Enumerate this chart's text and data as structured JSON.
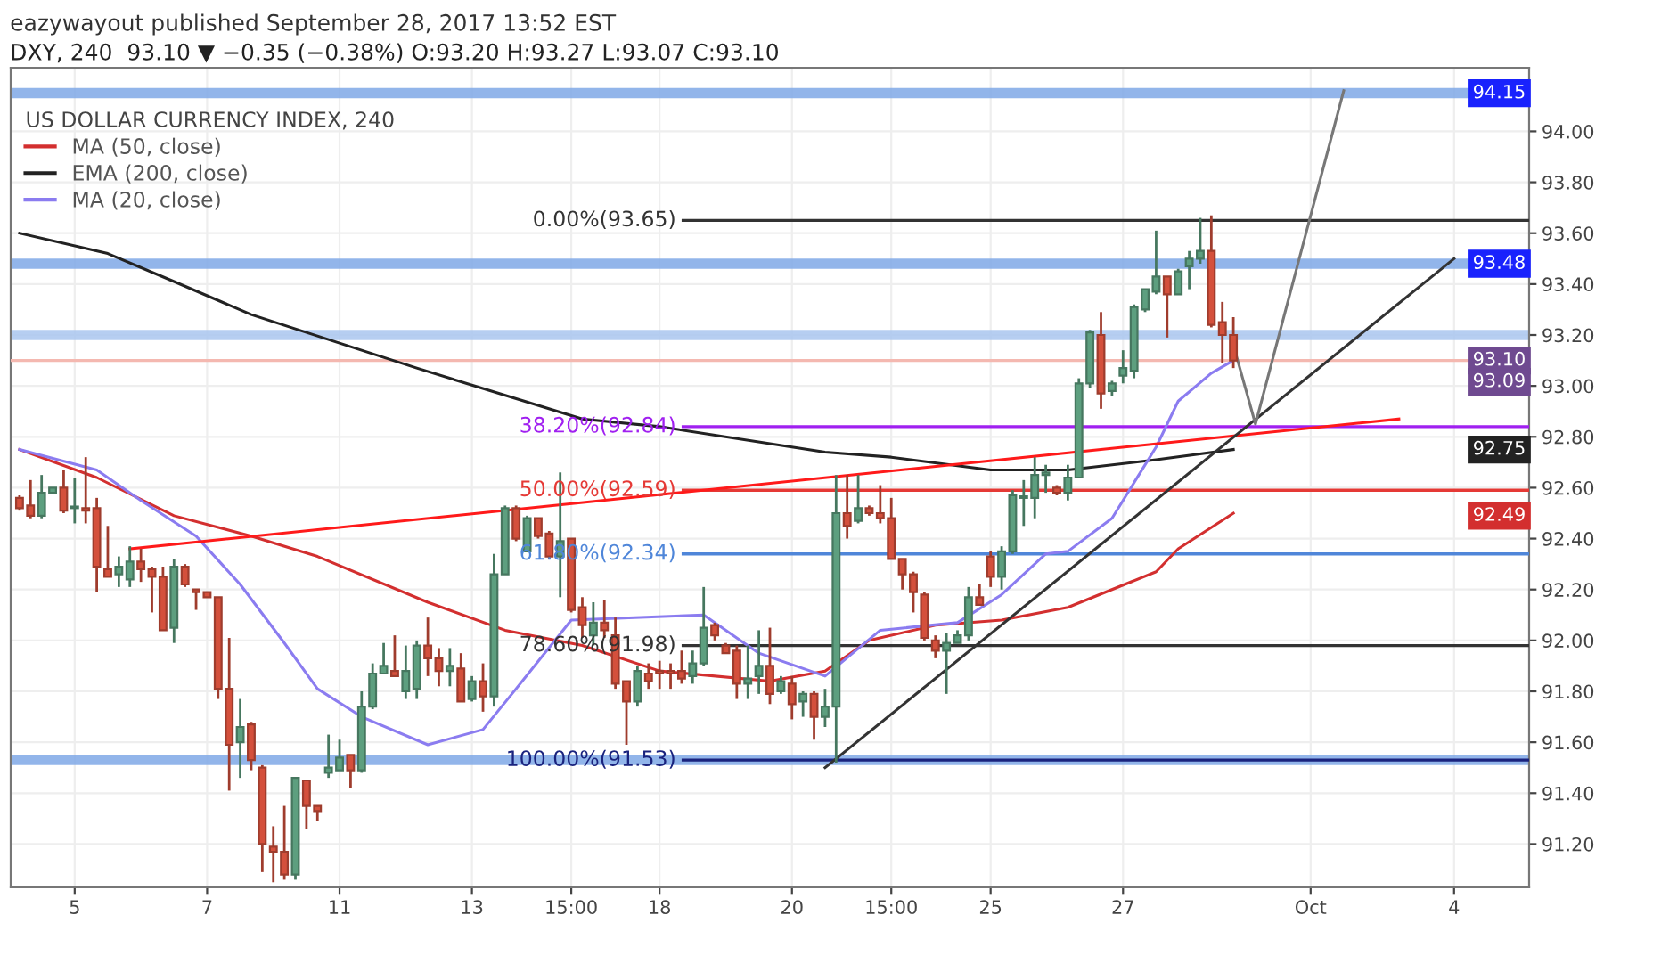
{
  "chart_data": {
    "type": "candlestick",
    "title": "eazywayout published September 28, 2017 13:52 EST",
    "subtitle": "DXY, 240  93.10 ▼ −0.35 (−0.38%) O:93.20 H:93.27 L:93.07 C:93.10",
    "legend_title": "US DOLLAR CURRENCY INDEX, 240",
    "categories": [
      null,
      null,
      null,
      null,
      null,
      "5",
      null,
      null,
      null,
      null,
      null,
      null,
      null,
      null,
      null,
      null,
      null,
      "7",
      null,
      null,
      null,
      null,
      null,
      null,
      null,
      null,
      null,
      null,
      null,
      "11",
      null,
      null,
      null,
      null,
      null,
      null,
      null,
      null,
      null,
      null,
      null,
      "13",
      null,
      null,
      null,
      null,
      null,
      null,
      null,
      null,
      "15:00",
      null,
      null,
      null,
      null,
      null,
      null,
      null,
      "18",
      null,
      null,
      null,
      null,
      null,
      null,
      null,
      null,
      null,
      null,
      null,
      "20",
      null,
      null,
      null,
      null,
      null,
      null,
      null,
      null,
      "15:00",
      null,
      null,
      null,
      null,
      null,
      null,
      null,
      null,
      "25",
      null,
      null,
      null,
      null,
      null,
      null,
      null,
      null,
      null,
      null,
      null,
      "27",
      null,
      null,
      null,
      null,
      null,
      null,
      null,
      null,
      null,
      null,
      null,
      null,
      null,
      null,
      null,
      null,
      "Oct",
      null,
      null,
      null,
      null,
      null,
      null,
      null,
      null,
      null,
      null,
      null,
      null,
      "4",
      null
    ],
    "ohlc": [
      [
        92.56,
        92.57,
        92.51,
        92.52
      ],
      [
        92.53,
        92.63,
        92.48,
        92.49
      ],
      [
        92.49,
        92.65,
        92.48,
        92.58
      ],
      [
        92.58,
        92.6,
        92.58,
        92.6
      ],
      [
        92.6,
        92.67,
        92.5,
        92.51
      ],
      [
        92.52,
        92.64,
        92.46,
        92.52
      ],
      [
        92.52,
        92.72,
        92.46,
        92.51
      ],
      [
        92.52,
        92.56,
        92.19,
        92.29
      ],
      [
        92.28,
        92.45,
        92.25,
        92.25
      ],
      [
        92.26,
        92.33,
        92.21,
        92.29
      ],
      [
        92.24,
        92.37,
        92.21,
        92.31
      ],
      [
        92.31,
        92.36,
        92.23,
        92.28
      ],
      [
        92.28,
        92.29,
        92.11,
        92.25
      ],
      [
        92.25,
        92.29,
        92.04,
        92.04
      ],
      [
        92.05,
        92.32,
        91.99,
        92.29
      ],
      [
        92.29,
        92.3,
        92.21,
        92.22
      ],
      [
        92.2,
        92.2,
        92.12,
        92.19
      ],
      [
        92.19,
        92.19,
        92.17,
        92.17
      ],
      [
        92.17,
        92.17,
        91.77,
        91.81
      ],
      [
        91.81,
        92.01,
        91.41,
        91.59
      ],
      [
        91.6,
        91.77,
        91.46,
        91.66
      ],
      [
        91.67,
        91.68,
        91.49,
        91.53
      ],
      [
        91.5,
        91.51,
        91.09,
        91.2
      ],
      [
        91.19,
        91.27,
        91.05,
        91.17
      ],
      [
        91.17,
        91.35,
        91.06,
        91.08
      ],
      [
        91.08,
        91.46,
        91.06,
        91.46
      ],
      [
        91.45,
        91.45,
        91.26,
        91.35
      ],
      [
        91.35,
        91.35,
        91.29,
        91.33
      ],
      [
        91.48,
        91.63,
        91.46,
        91.5
      ],
      [
        91.49,
        91.61,
        91.49,
        91.54
      ],
      [
        91.55,
        91.55,
        91.42,
        91.49
      ],
      [
        91.49,
        91.8,
        91.48,
        91.74
      ],
      [
        91.74,
        91.91,
        91.73,
        91.87
      ],
      [
        91.87,
        91.99,
        91.87,
        91.9
      ],
      [
        91.88,
        92.02,
        91.86,
        91.86
      ],
      [
        91.8,
        91.98,
        91.77,
        91.88
      ],
      [
        91.81,
        92.0,
        91.77,
        91.98
      ],
      [
        91.98,
        92.09,
        91.86,
        91.93
      ],
      [
        91.93,
        91.97,
        91.82,
        91.88
      ],
      [
        91.88,
        91.97,
        91.82,
        91.9
      ],
      [
        91.89,
        91.95,
        91.76,
        91.76
      ],
      [
        91.77,
        91.86,
        91.76,
        91.84
      ],
      [
        91.84,
        91.91,
        91.72,
        91.78
      ],
      [
        91.78,
        92.34,
        91.74,
        92.26
      ],
      [
        92.26,
        92.53,
        92.26,
        92.52
      ],
      [
        92.52,
        92.53,
        92.39,
        92.4
      ],
      [
        92.35,
        92.49,
        92.35,
        92.48
      ],
      [
        92.48,
        92.48,
        92.4,
        92.41
      ],
      [
        92.42,
        92.43,
        92.32,
        92.33
      ],
      [
        92.33,
        92.66,
        92.17,
        92.39
      ],
      [
        92.4,
        92.4,
        92.11,
        92.12
      ],
      [
        92.13,
        92.17,
        92.01,
        92.06
      ],
      [
        92.02,
        92.15,
        91.98,
        92.07
      ],
      [
        92.07,
        92.16,
        92.01,
        92.04
      ],
      [
        92.02,
        92.09,
        91.81,
        91.83
      ],
      [
        91.84,
        91.84,
        91.59,
        91.76
      ],
      [
        91.76,
        91.9,
        91.74,
        91.88
      ],
      [
        91.87,
        91.91,
        91.81,
        91.84
      ],
      [
        91.88,
        91.92,
        91.81,
        91.87
      ],
      [
        91.88,
        91.91,
        91.81,
        91.87
      ],
      [
        91.88,
        91.96,
        91.83,
        91.85
      ],
      [
        91.86,
        91.96,
        91.83,
        91.91
      ],
      [
        91.91,
        92.21,
        91.9,
        92.05
      ],
      [
        92.06,
        92.07,
        92.0,
        92.02
      ],
      [
        91.98,
        91.99,
        91.95,
        91.95
      ],
      [
        91.96,
        91.98,
        91.77,
        91.83
      ],
      [
        91.83,
        91.98,
        91.77,
        91.85
      ],
      [
        91.86,
        92.04,
        91.79,
        91.9
      ],
      [
        91.9,
        92.05,
        91.75,
        91.79
      ],
      [
        91.8,
        91.86,
        91.79,
        91.84
      ],
      [
        91.83,
        91.86,
        91.69,
        91.75
      ],
      [
        91.76,
        91.8,
        91.7,
        91.79
      ],
      [
        91.79,
        91.8,
        91.61,
        91.7
      ],
      [
        91.7,
        91.81,
        91.66,
        91.74
      ],
      [
        91.74,
        92.65,
        91.52,
        92.5
      ],
      [
        92.5,
        92.65,
        92.4,
        92.45
      ],
      [
        92.47,
        92.65,
        92.46,
        92.52
      ],
      [
        92.52,
        92.53,
        92.49,
        92.5
      ],
      [
        92.5,
        92.61,
        92.46,
        92.48
      ],
      [
        92.48,
        92.56,
        92.32,
        92.32
      ],
      [
        92.32,
        92.32,
        92.2,
        92.26
      ],
      [
        92.26,
        92.27,
        92.11,
        92.19
      ],
      [
        92.18,
        92.19,
        92.0,
        92.01
      ],
      [
        92.0,
        92.02,
        91.93,
        91.96
      ],
      [
        91.96,
        92.03,
        91.79,
        91.99
      ],
      [
        91.99,
        92.04,
        91.99,
        92.02
      ],
      [
        92.02,
        92.21,
        92.0,
        92.17
      ],
      [
        92.17,
        92.22,
        92.14,
        92.14
      ],
      [
        92.33,
        92.35,
        92.21,
        92.25
      ],
      [
        92.25,
        92.37,
        92.2,
        92.35
      ],
      [
        92.35,
        92.59,
        92.34,
        92.57
      ],
      [
        92.56,
        92.63,
        92.45,
        92.56
      ],
      [
        92.56,
        92.72,
        92.48,
        92.65
      ],
      [
        92.65,
        92.69,
        92.58,
        92.66
      ],
      [
        92.6,
        92.61,
        92.57,
        92.58
      ],
      [
        92.58,
        92.69,
        92.55,
        92.64
      ],
      [
        92.64,
        93.03,
        92.64,
        93.01
      ],
      [
        93.01,
        93.22,
        92.99,
        93.21
      ],
      [
        93.2,
        93.29,
        92.91,
        92.97
      ],
      [
        92.98,
        93.02,
        92.96,
        93.01
      ],
      [
        93.04,
        93.14,
        93.01,
        93.07
      ],
      [
        93.06,
        93.32,
        93.03,
        93.31
      ],
      [
        93.3,
        93.38,
        93.29,
        93.38
      ],
      [
        93.37,
        93.61,
        93.36,
        93.43
      ],
      [
        93.43,
        93.43,
        93.19,
        93.36
      ],
      [
        93.36,
        93.46,
        93.36,
        93.45
      ],
      [
        93.47,
        93.53,
        93.38,
        93.5
      ],
      [
        93.5,
        93.66,
        93.48,
        93.53
      ],
      [
        93.53,
        93.67,
        93.23,
        93.24
      ],
      [
        93.25,
        93.33,
        93.09,
        93.2
      ],
      [
        93.2,
        93.27,
        93.07,
        93.1
      ],
      null,
      null,
      null,
      null,
      null,
      null,
      null,
      null,
      null,
      null,
      null,
      null,
      null,
      null,
      null,
      null,
      null,
      null,
      null,
      null,
      null
    ],
    "colors": [
      "#d4503c",
      "#d4503c",
      "#5d9f7f",
      "#5d9f7f",
      "#d4503c",
      "#5d9f7f",
      "#d4503c",
      "#d4503c",
      "#d4503c",
      "#5d9f7f",
      "#5d9f7f",
      "#d4503c",
      "#d4503c",
      "#d4503c",
      "#5d9f7f",
      "#d4503c",
      "#d4503c",
      "#d4503c",
      "#d4503c",
      "#d4503c",
      "#5d9f7f",
      "#d4503c",
      "#d4503c",
      "#d4503c",
      "#d4503c",
      "#5d9f7f",
      "#d4503c",
      "#d4503c",
      "#5d9f7f",
      "#5d9f7f",
      "#d4503c",
      "#5d9f7f",
      "#5d9f7f",
      "#5d9f7f",
      "#d4503c",
      "#5d9f7f",
      "#5d9f7f",
      "#d4503c",
      "#d4503c",
      "#5d9f7f",
      "#d4503c",
      "#5d9f7f",
      "#d4503c",
      "#5d9f7f",
      "#5d9f7f",
      "#d4503c",
      "#5d9f7f",
      "#d4503c",
      "#d4503c",
      "#5d9f7f",
      "#d4503c",
      "#d4503c",
      "#5d9f7f",
      "#d4503c",
      "#d4503c",
      "#d4503c",
      "#5d9f7f",
      "#d4503c",
      "#d4503c",
      "#d4503c",
      "#d4503c",
      "#5d9f7f",
      "#5d9f7f",
      "#d4503c",
      "#d4503c",
      "#d4503c",
      "#5d9f7f",
      "#5d9f7f",
      "#d4503c",
      "#5d9f7f",
      "#d4503c",
      "#5d9f7f",
      "#d4503c",
      "#5d9f7f",
      "#5d9f7f",
      "#d4503c",
      "#5d9f7f",
      "#d4503c",
      "#d4503c",
      "#d4503c",
      "#d4503c",
      "#d4503c",
      "#d4503c",
      "#d4503c",
      "#5d9f7f",
      "#5d9f7f",
      "#5d9f7f",
      "#d4503c",
      "#d4503c",
      "#5d9f7f",
      "#5d9f7f",
      "#5d9f7f",
      "#5d9f7f",
      "#5d9f7f",
      "#d4503c",
      "#5d9f7f",
      "#5d9f7f",
      "#5d9f7f",
      "#d4503c",
      "#5d9f7f",
      "#5d9f7f",
      "#5d9f7f",
      "#5d9f7f",
      "#5d9f7f",
      "#d4503c",
      "#5d9f7f",
      "#5d9f7f",
      "#5d9f7f",
      "#d4503c",
      "#d4503c",
      "#d4503c",
      null,
      null,
      null,
      null,
      null,
      null,
      null,
      null,
      null,
      null,
      null,
      null,
      null,
      null,
      null,
      null,
      null,
      null,
      null,
      null,
      null
    ],
    "series": [
      {
        "name": "MA (50, close)",
        "type": "line",
        "color": "#d32f2f",
        "values": [
          92.75,
          null,
          null,
          null,
          null,
          null,
          null,
          92.64,
          null,
          null,
          null,
          null,
          null,
          null,
          92.49,
          null,
          null,
          null,
          null,
          null,
          null,
          92.41,
          null,
          null,
          null,
          null,
          null,
          92.33,
          null,
          null,
          null,
          null,
          null,
          null,
          null,
          null,
          null,
          92.15,
          null,
          null,
          null,
          null,
          null,
          null,
          92.04,
          null,
          null,
          null,
          null,
          null,
          null,
          91.98,
          null,
          null,
          null,
          null,
          null,
          null,
          91.88,
          null,
          null,
          null,
          null,
          null,
          null,
          null,
          null,
          null,
          91.84,
          null,
          null,
          null,
          null,
          91.88,
          null,
          null,
          null,
          92.0,
          null,
          null,
          null,
          null,
          null,
          92.06,
          null,
          null,
          null,
          null,
          null,
          92.08,
          null,
          null,
          null,
          null,
          null,
          92.13,
          null,
          null,
          null,
          null,
          null,
          null,
          null,
          92.27,
          null,
          92.36,
          null,
          null,
          null,
          null,
          92.5,
          null,
          null,
          null,
          null,
          null,
          null,
          null,
          null,
          null,
          null,
          null,
          null,
          null,
          null,
          null,
          null,
          null,
          null,
          null,
          null,
          null
        ]
      },
      {
        "name": "EMA (200, close)",
        "type": "line",
        "color": "#222222",
        "values": [
          93.6,
          null,
          null,
          null,
          null,
          null,
          null,
          null,
          93.52,
          null,
          null,
          null,
          null,
          null,
          93.41,
          null,
          null,
          null,
          null,
          null,
          null,
          93.28,
          null,
          null,
          null,
          null,
          null,
          null,
          null,
          null,
          null,
          null,
          null,
          null,
          null,
          null,
          93.07,
          null,
          null,
          null,
          null,
          null,
          null,
          null,
          null,
          null,
          null,
          null,
          null,
          null,
          null,
          92.87,
          null,
          null,
          null,
          null,
          null,
          null,
          92.84,
          null,
          null,
          null,
          null,
          null,
          null,
          null,
          null,
          null,
          null,
          null,
          null,
          null,
          null,
          92.74,
          null,
          null,
          null,
          null,
          null,
          92.72,
          null,
          null,
          null,
          null,
          null,
          null,
          null,
          null,
          92.67,
          null,
          null,
          null,
          null,
          null,
          null,
          92.67,
          null,
          null,
          null,
          null,
          null,
          null,
          null,
          92.71,
          null,
          null,
          null,
          null,
          null,
          null,
          92.75,
          null,
          null,
          null,
          null,
          null,
          null,
          null,
          null,
          null,
          null,
          null,
          null,
          null,
          null,
          null,
          null,
          null,
          null,
          null,
          null,
          null
        ]
      },
      {
        "name": "MA (20, close)",
        "type": "line",
        "color": "#8b7cf0",
        "values": [
          92.75,
          null,
          null,
          null,
          null,
          null,
          null,
          92.67,
          null,
          null,
          null,
          92.55,
          null,
          null,
          null,
          null,
          92.41,
          null,
          null,
          null,
          92.22,
          null,
          null,
          null,
          91.99,
          null,
          null,
          91.81,
          null,
          null,
          null,
          91.7,
          null,
          null,
          null,
          null,
          null,
          91.59,
          null,
          null,
          null,
          null,
          91.65,
          null,
          null,
          91.81,
          null,
          null,
          null,
          null,
          92.08,
          null,
          null,
          null,
          null,
          null,
          null,
          null,
          null,
          null,
          null,
          null,
          92.1,
          null,
          null,
          null,
          null,
          91.95,
          null,
          null,
          null,
          null,
          null,
          91.86,
          null,
          null,
          null,
          null,
          92.04,
          null,
          null,
          null,
          null,
          null,
          null,
          92.07,
          null,
          null,
          null,
          92.18,
          null,
          null,
          null,
          92.34,
          null,
          92.35,
          null,
          null,
          null,
          92.48,
          null,
          null,
          null,
          92.76,
          null,
          92.94,
          null,
          null,
          93.05,
          null,
          93.1,
          null,
          null,
          null,
          null,
          null,
          null,
          null,
          null,
          null,
          null,
          null,
          null,
          null,
          null,
          null,
          null,
          null,
          null,
          null,
          null,
          null
        ]
      },
      {
        "type": "line",
        "color": "#ff1a1a",
        "values": [
          null,
          null,
          null,
          null,
          null,
          null,
          null,
          null,
          null,
          null,
          92.36,
          null,
          null,
          null,
          null,
          null,
          null,
          null,
          null,
          null,
          null,
          null,
          null,
          null,
          null,
          null,
          null,
          null,
          null,
          null,
          null,
          null,
          null,
          null,
          null,
          null,
          null,
          null,
          null,
          null,
          null,
          null,
          null,
          null,
          null,
          null,
          null,
          null,
          null,
          null,
          null,
          null,
          null,
          null,
          null,
          null,
          null,
          null,
          null,
          null,
          null,
          null,
          null,
          null,
          null,
          null,
          null,
          null,
          null,
          null,
          null,
          null,
          null,
          null,
          null,
          null,
          null,
          null,
          null,
          null,
          null,
          null,
          null,
          null,
          null,
          null,
          null,
          null,
          null,
          null,
          null,
          null,
          null,
          null,
          null,
          null,
          null,
          null,
          null,
          null,
          null,
          null,
          null,
          null,
          null,
          null,
          null,
          null,
          null,
          null,
          null,
          null,
          null,
          null,
          null,
          null,
          null,
          null,
          null,
          null,
          null,
          null,
          null,
          null,
          null,
          92.87,
          null,
          null,
          null,
          null,
          null,
          null
        ]
      },
      {
        "type": "line",
        "color": "#333333",
        "values": [
          null,
          null,
          null,
          null,
          null,
          null,
          null,
          null,
          null,
          null,
          null,
          null,
          null,
          null,
          null,
          null,
          null,
          null,
          null,
          null,
          null,
          null,
          null,
          null,
          null,
          null,
          null,
          null,
          null,
          null,
          null,
          null,
          null,
          null,
          null,
          null,
          null,
          null,
          null,
          null,
          null,
          null,
          null,
          null,
          null,
          null,
          null,
          null,
          null,
          null,
          null,
          null,
          null,
          null,
          null,
          null,
          null,
          null,
          null,
          null,
          null,
          null,
          null,
          null,
          null,
          null,
          null,
          null,
          null,
          null,
          null,
          null,
          null,
          91.5,
          null,
          null,
          null,
          null,
          null,
          null,
          null,
          null,
          null,
          null,
          null,
          null,
          null,
          null,
          null,
          null,
          null,
          null,
          null,
          null,
          null,
          null,
          null,
          null,
          null,
          null,
          null,
          null,
          null,
          null,
          null,
          null,
          null,
          null,
          null,
          null,
          null,
          null,
          null,
          null,
          null,
          null,
          null,
          null,
          null,
          null,
          null,
          null,
          null,
          null,
          null,
          null,
          null,
          null,
          null,
          null,
          93.5,
          null
        ]
      },
      {
        "type": "line",
        "color": "#777777",
        "values": [
          null,
          null,
          null,
          null,
          null,
          null,
          null,
          null,
          null,
          null,
          null,
          null,
          null,
          null,
          null,
          null,
          null,
          null,
          null,
          null,
          null,
          null,
          null,
          null,
          null,
          null,
          null,
          null,
          null,
          null,
          null,
          null,
          null,
          null,
          null,
          null,
          null,
          null,
          null,
          null,
          null,
          null,
          null,
          null,
          null,
          null,
          null,
          null,
          null,
          null,
          null,
          null,
          null,
          null,
          null,
          null,
          null,
          null,
          null,
          null,
          null,
          null,
          null,
          null,
          null,
          null,
          null,
          null,
          null,
          null,
          null,
          null,
          null,
          null,
          null,
          null,
          null,
          null,
          null,
          null,
          null,
          null,
          null,
          null,
          null,
          null,
          null,
          null,
          null,
          null,
          null,
          null,
          null,
          null,
          null,
          null,
          null,
          null,
          null,
          null,
          null,
          null,
          null,
          null,
          null,
          null,
          null,
          null,
          null,
          null,
          93.16,
          null,
          92.85,
          null,
          null,
          null,
          null,
          null,
          null,
          null,
          94.16,
          null,
          null,
          null,
          null,
          null,
          null,
          null,
          null,
          null,
          null,
          null
        ]
      }
    ],
    "bands": [
      {
        "axis": "y",
        "from": 94.13,
        "to": 94.17,
        "label": "94.15",
        "color": "#7fa8e6"
      },
      {
        "axis": "y",
        "from": 93.46,
        "to": 93.5,
        "label": "93.48",
        "color": "#7fa8e6"
      },
      {
        "axis": "y",
        "from": 93.18,
        "to": 93.22,
        "color": "#a9c6ee"
      },
      {
        "axis": "y",
        "from": 91.51,
        "to": 91.55,
        "color": "#7fa8e6"
      }
    ],
    "ref_lines": [
      {
        "axis": "y",
        "value": 93.1,
        "color": "#f4b8b0"
      },
      {
        "axis": "y",
        "value": 93.65,
        "label": "0.00%(93.65)",
        "color": "#333333"
      },
      {
        "axis": "y",
        "value": 92.84,
        "label": "38.20%(92.84)",
        "color": "#a020f0"
      },
      {
        "axis": "y",
        "value": 92.59,
        "label": "50.00%(92.59)",
        "color": "#e53935"
      },
      {
        "axis": "y",
        "value": 92.34,
        "label": "61.80%(92.34)",
        "color": "#4f86d9"
      },
      {
        "axis": "y",
        "value": 91.98,
        "label": "78.60%(91.98)",
        "color": "#333333"
      },
      {
        "axis": "y",
        "value": 91.53,
        "label": "100.00%(91.53)",
        "color": "#1a237e"
      }
    ],
    "annotations": [
      {
        "text": "93.10",
        "y": 93.1
      },
      {
        "text": "93.09",
        "y": 93.09
      },
      {
        "text": "92.75",
        "y": 92.75
      },
      {
        "text": "92.49",
        "y": 92.49
      }
    ],
    "ylim": [
      91.03,
      94.25
    ],
    "yticks": [
      {
        "value": 91.2,
        "label": "91.20"
      },
      {
        "value": 91.4,
        "label": "91.40"
      },
      {
        "value": 91.6,
        "label": "91.60"
      },
      {
        "value": 91.8,
        "label": "91.80"
      },
      {
        "value": 92.0,
        "label": "92.00"
      },
      {
        "value": 92.2,
        "label": "92.20"
      },
      {
        "value": 92.4,
        "label": "92.40"
      },
      {
        "value": 92.6,
        "label": "92.60"
      },
      {
        "value": 92.8,
        "label": "92.80"
      },
      {
        "value": 93.0,
        "label": "93.00"
      },
      {
        "value": 93.2,
        "label": "93.20"
      },
      {
        "value": 93.4,
        "label": "93.40"
      },
      {
        "value": 93.6,
        "label": "93.60"
      },
      {
        "value": 93.8,
        "label": "93.80"
      },
      {
        "value": 94.0,
        "label": "94.00"
      }
    ],
    "grid": true,
    "legend": "top left"
  }
}
